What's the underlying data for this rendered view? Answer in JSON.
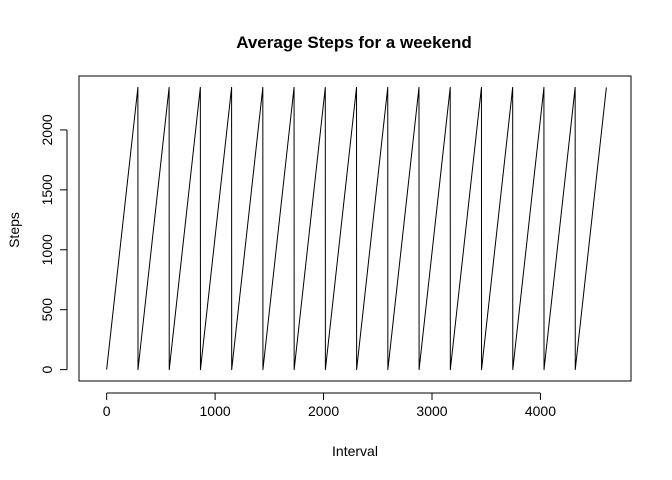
{
  "chart_data": {
    "type": "line",
    "title": "Average  Steps for a weekend",
    "xlabel": "Interval",
    "ylabel": "Steps",
    "xlim": [
      -255,
      4835
    ],
    "ylim": [
      -95,
      2450
    ],
    "x_ticks": [
      0,
      1000,
      2000,
      3000,
      4000
    ],
    "y_ticks": [
      0,
      500,
      1000,
      1500,
      2000
    ],
    "grid": false,
    "series_color": "#000000",
    "series": [
      {
        "x": [
          0,
          288,
          289,
          576,
          577,
          864,
          865,
          1152,
          1153,
          1440,
          1441,
          1728,
          1729,
          2016,
          2017,
          2304,
          2305,
          2592,
          2593,
          2880,
          2881,
          3168,
          3169,
          3456,
          3457,
          3744,
          3745,
          4032,
          4033,
          4320,
          4321,
          4608
        ],
        "y": [
          0,
          2355,
          0,
          2355,
          0,
          2355,
          0,
          2355,
          0,
          2355,
          0,
          2355,
          0,
          2355,
          0,
          2355,
          0,
          2355,
          0,
          2355,
          0,
          2355,
          0,
          2355,
          0,
          2355,
          0,
          2355,
          0,
          2355,
          0,
          2355
        ]
      }
    ]
  }
}
